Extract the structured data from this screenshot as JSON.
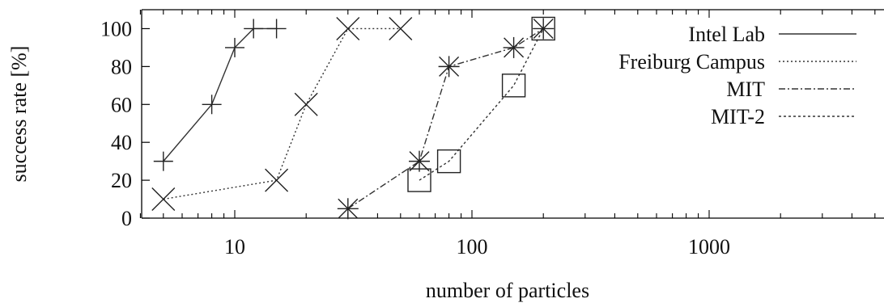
{
  "chart_data": {
    "type": "line",
    "xlabel": "number of particles",
    "ylabel": "success rate [%]",
    "xscale": "log",
    "xlim": [
      4,
      9000
    ],
    "ylim": [
      0,
      110
    ],
    "x_ticks": [
      10,
      100,
      1000
    ],
    "x_tick_labels": [
      "10",
      "100",
      "1000"
    ],
    "y_ticks": [
      0,
      20,
      40,
      60,
      80,
      100
    ],
    "y_tick_labels": [
      "0",
      "20",
      "40",
      "60",
      "80",
      "100"
    ],
    "legend_position": "top-right",
    "series": [
      {
        "name": "Intel Lab",
        "marker": "plus",
        "line": "solid",
        "x": [
          5,
          8,
          10,
          12,
          15
        ],
        "y": [
          30,
          60,
          90,
          100,
          100
        ]
      },
      {
        "name": "Freiburg Campus",
        "marker": "cross",
        "line": "dotted",
        "x": [
          5,
          15,
          20,
          30,
          50
        ],
        "y": [
          10,
          20,
          60,
          100,
          100
        ]
      },
      {
        "name": "MIT",
        "marker": "star",
        "line": "dashdot",
        "x": [
          30,
          60,
          80,
          150,
          200
        ],
        "y": [
          5,
          30,
          80,
          90,
          100
        ]
      },
      {
        "name": "MIT-2",
        "marker": "square",
        "line": "dashed",
        "x": [
          60,
          80,
          150,
          200
        ],
        "y": [
          20,
          30,
          70,
          100
        ]
      }
    ]
  }
}
